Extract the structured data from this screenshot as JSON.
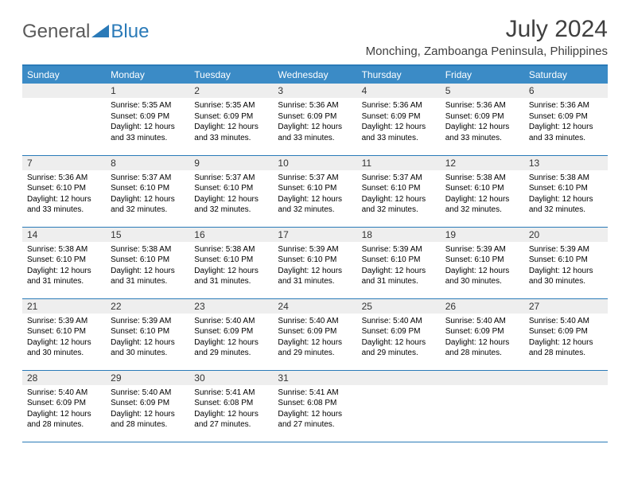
{
  "logo": {
    "text1": "General",
    "text2": "Blue",
    "color1": "#5a5a5a",
    "color2": "#2a7ab8"
  },
  "title": "July 2024",
  "location": "Monching, Zamboanga Peninsula, Philippines",
  "headers": [
    "Sunday",
    "Monday",
    "Tuesday",
    "Wednesday",
    "Thursday",
    "Friday",
    "Saturday"
  ],
  "style": {
    "header_bg": "#3b8bc6",
    "header_text": "#ffffff",
    "border_color": "#2a7ab8",
    "daynum_bg": "#eeeeee",
    "body_font_size": 10,
    "header_font_size": 12,
    "title_font_size": 30,
    "location_font_size": 15
  },
  "weeks": [
    [
      {
        "n": "",
        "t": ""
      },
      {
        "n": "1",
        "t": "Sunrise: 5:35 AM\nSunset: 6:09 PM\nDaylight: 12 hours and 33 minutes."
      },
      {
        "n": "2",
        "t": "Sunrise: 5:35 AM\nSunset: 6:09 PM\nDaylight: 12 hours and 33 minutes."
      },
      {
        "n": "3",
        "t": "Sunrise: 5:36 AM\nSunset: 6:09 PM\nDaylight: 12 hours and 33 minutes."
      },
      {
        "n": "4",
        "t": "Sunrise: 5:36 AM\nSunset: 6:09 PM\nDaylight: 12 hours and 33 minutes."
      },
      {
        "n": "5",
        "t": "Sunrise: 5:36 AM\nSunset: 6:09 PM\nDaylight: 12 hours and 33 minutes."
      },
      {
        "n": "6",
        "t": "Sunrise: 5:36 AM\nSunset: 6:09 PM\nDaylight: 12 hours and 33 minutes."
      }
    ],
    [
      {
        "n": "7",
        "t": "Sunrise: 5:36 AM\nSunset: 6:10 PM\nDaylight: 12 hours and 33 minutes."
      },
      {
        "n": "8",
        "t": "Sunrise: 5:37 AM\nSunset: 6:10 PM\nDaylight: 12 hours and 32 minutes."
      },
      {
        "n": "9",
        "t": "Sunrise: 5:37 AM\nSunset: 6:10 PM\nDaylight: 12 hours and 32 minutes."
      },
      {
        "n": "10",
        "t": "Sunrise: 5:37 AM\nSunset: 6:10 PM\nDaylight: 12 hours and 32 minutes."
      },
      {
        "n": "11",
        "t": "Sunrise: 5:37 AM\nSunset: 6:10 PM\nDaylight: 12 hours and 32 minutes."
      },
      {
        "n": "12",
        "t": "Sunrise: 5:38 AM\nSunset: 6:10 PM\nDaylight: 12 hours and 32 minutes."
      },
      {
        "n": "13",
        "t": "Sunrise: 5:38 AM\nSunset: 6:10 PM\nDaylight: 12 hours and 32 minutes."
      }
    ],
    [
      {
        "n": "14",
        "t": "Sunrise: 5:38 AM\nSunset: 6:10 PM\nDaylight: 12 hours and 31 minutes."
      },
      {
        "n": "15",
        "t": "Sunrise: 5:38 AM\nSunset: 6:10 PM\nDaylight: 12 hours and 31 minutes."
      },
      {
        "n": "16",
        "t": "Sunrise: 5:38 AM\nSunset: 6:10 PM\nDaylight: 12 hours and 31 minutes."
      },
      {
        "n": "17",
        "t": "Sunrise: 5:39 AM\nSunset: 6:10 PM\nDaylight: 12 hours and 31 minutes."
      },
      {
        "n": "18",
        "t": "Sunrise: 5:39 AM\nSunset: 6:10 PM\nDaylight: 12 hours and 31 minutes."
      },
      {
        "n": "19",
        "t": "Sunrise: 5:39 AM\nSunset: 6:10 PM\nDaylight: 12 hours and 30 minutes."
      },
      {
        "n": "20",
        "t": "Sunrise: 5:39 AM\nSunset: 6:10 PM\nDaylight: 12 hours and 30 minutes."
      }
    ],
    [
      {
        "n": "21",
        "t": "Sunrise: 5:39 AM\nSunset: 6:10 PM\nDaylight: 12 hours and 30 minutes."
      },
      {
        "n": "22",
        "t": "Sunrise: 5:39 AM\nSunset: 6:10 PM\nDaylight: 12 hours and 30 minutes."
      },
      {
        "n": "23",
        "t": "Sunrise: 5:40 AM\nSunset: 6:09 PM\nDaylight: 12 hours and 29 minutes."
      },
      {
        "n": "24",
        "t": "Sunrise: 5:40 AM\nSunset: 6:09 PM\nDaylight: 12 hours and 29 minutes."
      },
      {
        "n": "25",
        "t": "Sunrise: 5:40 AM\nSunset: 6:09 PM\nDaylight: 12 hours and 29 minutes."
      },
      {
        "n": "26",
        "t": "Sunrise: 5:40 AM\nSunset: 6:09 PM\nDaylight: 12 hours and 28 minutes."
      },
      {
        "n": "27",
        "t": "Sunrise: 5:40 AM\nSunset: 6:09 PM\nDaylight: 12 hours and 28 minutes."
      }
    ],
    [
      {
        "n": "28",
        "t": "Sunrise: 5:40 AM\nSunset: 6:09 PM\nDaylight: 12 hours and 28 minutes."
      },
      {
        "n": "29",
        "t": "Sunrise: 5:40 AM\nSunset: 6:09 PM\nDaylight: 12 hours and 28 minutes."
      },
      {
        "n": "30",
        "t": "Sunrise: 5:41 AM\nSunset: 6:08 PM\nDaylight: 12 hours and 27 minutes."
      },
      {
        "n": "31",
        "t": "Sunrise: 5:41 AM\nSunset: 6:08 PM\nDaylight: 12 hours and 27 minutes."
      },
      {
        "n": "",
        "t": ""
      },
      {
        "n": "",
        "t": ""
      },
      {
        "n": "",
        "t": ""
      }
    ]
  ]
}
